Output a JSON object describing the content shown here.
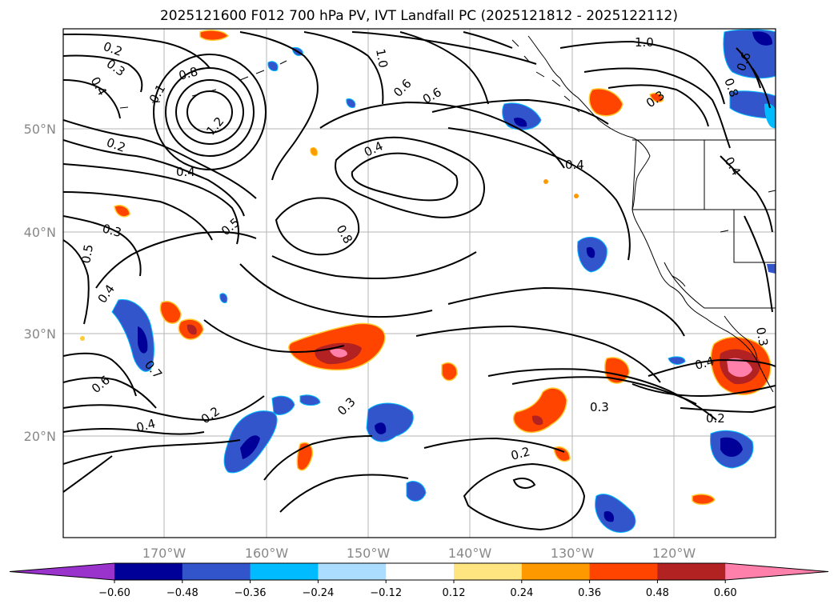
{
  "title": "2025121600 F012 700 hPa PV, IVT Landfall PC (2025121812 - 2025122112)",
  "lat_labels": [
    "50°N",
    "40°N",
    "30°N",
    "20°N"
  ],
  "lon_labels": [
    "170°W",
    "160°W",
    "150°W",
    "140°W",
    "130°W",
    "120°W"
  ],
  "contour_labels": [
    "0.2",
    "0.3",
    "0.4",
    "0.8",
    "0.1",
    "1.2",
    "0.2",
    "0.4",
    "0.3",
    "0.5",
    "0.5",
    "0.4",
    "0.4",
    "0.6",
    "0.7",
    "0.6",
    "0.4",
    "0.2",
    "0.3",
    "0.8",
    "0.6",
    "1.0",
    "1.0",
    "0.4",
    "0.4",
    "0.3",
    "0.2",
    "0.4",
    "0.2",
    "0.3",
    "0.3",
    "0.8",
    "0.6"
  ],
  "colorbar": {
    "ticks": [
      "−0.60",
      "−0.48",
      "−0.36",
      "−0.24",
      "−0.12",
      "0.12",
      "0.24",
      "0.36",
      "0.48",
      "0.60"
    ],
    "colors": [
      "#9933cc",
      "#000099",
      "#3355cc",
      "#00bbff",
      "#aaddff",
      "#ffffff",
      "#ffe580",
      "#ff9900",
      "#ff4400",
      "#b22222",
      "#ff80aa"
    ]
  }
}
